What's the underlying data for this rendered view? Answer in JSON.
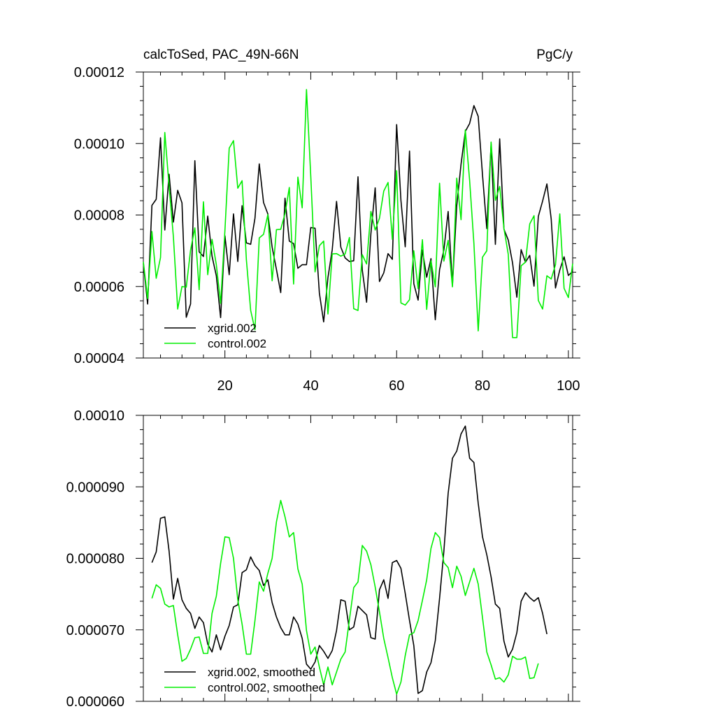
{
  "colors": {
    "xgrid": "#000000",
    "control": "#00ee00",
    "axis": "#000000"
  },
  "chart_data": [
    {
      "type": "line",
      "title": "calcToSed, PAC_49N-66N",
      "title_right": "PgC/y",
      "xlim": [
        1,
        101
      ],
      "ylim": [
        4e-05,
        0.00012
      ],
      "xticks": [
        20,
        40,
        60,
        80,
        100
      ],
      "xtick_labels": [
        "20",
        "40",
        "60",
        "80",
        "100"
      ],
      "yticks": [
        4e-05,
        6e-05,
        8e-05,
        0.0001,
        0.00012
      ],
      "ytick_labels": [
        "0.00004",
        "0.00006",
        "0.00008",
        "0.00010",
        "0.00012"
      ],
      "legend_position": "bottom-left",
      "series": [
        {
          "name": "xgrid.002",
          "color": "#000000",
          "x_start": 1,
          "values": [
            6.65e-05,
            5.51e-05,
            8.27e-05,
            8.44e-05,
            0.0001016,
            7.58e-05,
            9.14e-05,
            7.8e-05,
            8.69e-05,
            8.34e-05,
            5.14e-05,
            5.51e-05,
            9.52e-05,
            6.97e-05,
            6.84e-05,
            7.97e-05,
            6.85e-05,
            6.3e-05,
            5.13e-05,
            7.42e-05,
            6.33e-05,
            8.03e-05,
            6.7e-05,
            8.26e-05,
            7.22e-05,
            7.18e-05,
            7.91e-05,
            9.43e-05,
            8.35e-05,
            8.03e-05,
            7.1e-05,
            6.48e-05,
            5.83e-05,
            8.47e-05,
            7.27e-05,
            7.2e-05,
            6.51e-05,
            6.61e-05,
            6.61e-05,
            7.65e-05,
            7.63e-05,
            5.82e-05,
            5.01e-05,
            6.25e-05,
            7.03e-05,
            8.38e-05,
            7.1e-05,
            6.8e-05,
            6.7e-05,
            6.72e-05,
            9.07e-05,
            6.46e-05,
            5.56e-05,
            7.47e-05,
            8.76e-05,
            6.14e-05,
            6.38e-05,
            6.92e-05,
            6.76e-05,
            0.0001053,
            8.41e-05,
            7.11e-05,
            9.79e-05,
            6.08e-05,
            5.62e-05,
            7.02e-05,
            6.26e-05,
            6.78e-05,
            5.07e-05,
            6.47e-05,
            7.02e-05,
            8.1e-05,
            6.03e-05,
            8.26e-05,
            9.42e-05,
            0.0001034,
            0.0001056,
            0.0001106,
            0.0001076,
            9.12e-05,
            7.62e-05,
            9.98e-05,
            7.18e-05,
            0.0001013,
            7.6e-05,
            7.3e-05,
            6.66e-05,
            5.7e-05,
            7.03e-05,
            6.68e-05,
            6.87e-05,
            6.01e-05,
            7.96e-05,
            8.39e-05,
            8.87e-05,
            7.89e-05,
            5.96e-05,
            6.46e-05,
            6.83e-05,
            6.31e-05,
            6.42e-05
          ]
        },
        {
          "name": "control.002",
          "color": "#00ee00",
          "x_start": 1,
          "values": [
            6.69e-05,
            5.66e-05,
            7.54e-05,
            6.23e-05,
            6.81e-05,
            0.0001031,
            8.8e-05,
            7.39e-05,
            5.37e-05,
            6e-05,
            5.98e-05,
            7.02e-05,
            7.64e-05,
            5.91e-05,
            8.37e-05,
            6.33e-05,
            7.32e-05,
            6.61e-05,
            5.53e-05,
            7.56e-05,
            9.87e-05,
            0.0001008,
            8.75e-05,
            8.96e-05,
            6.75e-05,
            5.33e-05,
            4.79e-05,
            7.36e-05,
            7.46e-05,
            8.01e-05,
            6.16e-05,
            7.59e-05,
            7.6e-05,
            8.04e-05,
            8.77e-05,
            6.07e-05,
            9.06e-05,
            8.2e-05,
            0.0001151,
            9.08e-05,
            6.41e-05,
            7.14e-05,
            7.27e-05,
            5.23e-05,
            6.91e-05,
            6.92e-05,
            6.85e-05,
            6.91e-05,
            7.37e-05,
            5.38e-05,
            5.33e-05,
            6.89e-05,
            6.63e-05,
            8.1e-05,
            7.58e-05,
            7.91e-05,
            8.67e-05,
            8.91e-05,
            7.32e-05,
            9.24e-05,
            5.54e-05,
            5.48e-05,
            5.63e-05,
            7e-05,
            5.94e-05,
            7.31e-05,
            5.36e-05,
            6.72e-05,
            5.99e-05,
            8.89e-05,
            6.71e-05,
            7.29e-05,
            5.99e-05,
            9.03e-05,
            7.87e-05,
            0.0001038,
            8.97e-05,
            7.2e-05,
            4.76e-05,
            6.82e-05,
            7e-05,
            0.0001004,
            8.41e-05,
            8.8e-05,
            7.62e-05,
            6.9e-05,
            4.57e-05,
            4.57e-05,
            6.58e-05,
            6.68e-05,
            7.75e-05,
            7.98e-05,
            5.61e-05,
            5.37e-05,
            6.3e-05,
            6.21e-05,
            6.61e-05,
            8.03e-05,
            5.95e-05,
            5.69e-05,
            6.64e-05
          ]
        }
      ]
    },
    {
      "type": "line",
      "xlim": [
        1,
        101
      ],
      "ylim": [
        6e-05,
        0.0001
      ],
      "xticks": [
        20,
        40,
        60,
        80,
        100
      ],
      "yticks": [
        6e-05,
        7e-05,
        8e-05,
        9e-05,
        0.0001
      ],
      "ytick_labels": [
        "0.000060",
        "0.000070",
        "0.000080",
        "0.000090",
        "0.00010"
      ],
      "legend_position": "bottom-left",
      "series": [
        {
          "name": "xgrid.002, smoothed",
          "color": "#000000",
          "x_start": 3,
          "values": [
            7.94e-05,
            8.09e-05,
            8.56e-05,
            8.58e-05,
            8.1e-05,
            7.43e-05,
            7.72e-05,
            7.42e-05,
            7.3e-05,
            7.23e-05,
            7.02e-05,
            7.18e-05,
            7.1e-05,
            6.8e-05,
            6.69e-05,
            6.93e-05,
            6.72e-05,
            6.91e-05,
            7.06e-05,
            7.32e-05,
            7.35e-05,
            7.8e-05,
            7.84e-05,
            8.02e-05,
            7.9e-05,
            7.83e-05,
            7.62e-05,
            7.7e-05,
            7.38e-05,
            7.18e-05,
            7.03e-05,
            6.93e-05,
            6.93e-05,
            7.18e-05,
            7.08e-05,
            6.88e-05,
            6.52e-05,
            6.45e-05,
            6.55e-05,
            6.78e-05,
            6.7e-05,
            6.6e-05,
            6.71e-05,
            6.99e-05,
            7.42e-05,
            7.4e-05,
            7e-05,
            7.04e-05,
            7.33e-05,
            7.27e-05,
            7.21e-05,
            6.89e-05,
            6.87e-05,
            7.56e-05,
            7.7e-05,
            7.44e-05,
            7.94e-05,
            7.97e-05,
            7.86e-05,
            7.51e-05,
            7.13e-05,
            6.78e-05,
            6.11e-05,
            6.15e-05,
            6.41e-05,
            6.54e-05,
            6.85e-05,
            7.44e-05,
            8.1e-05,
            8.91e-05,
            9.4e-05,
            9.5e-05,
            9.74e-05,
            9.85e-05,
            9.4e-05,
            9.34e-05,
            8.77e-05,
            8.3e-05,
            8.05e-05,
            7.74e-05,
            7.36e-05,
            7.3e-05,
            6.84e-05,
            6.62e-05,
            6.73e-05,
            6.96e-05,
            7.4e-05,
            7.52e-05,
            7.45e-05,
            7.4e-05,
            7.45e-05,
            7.23e-05,
            6.94e-05
          ]
        },
        {
          "name": "control.002, smoothed",
          "color": "#00ee00",
          "x_start": 3,
          "values": [
            7.44e-05,
            7.63e-05,
            7.58e-05,
            7.36e-05,
            7.32e-05,
            7.34e-05,
            6.93e-05,
            6.56e-05,
            6.6e-05,
            6.73e-05,
            6.89e-05,
            6.9e-05,
            6.67e-05,
            6.67e-05,
            7.23e-05,
            7.47e-05,
            7.93e-05,
            8.3e-05,
            8.29e-05,
            8e-05,
            7.42e-05,
            7.08e-05,
            6.66e-05,
            6.66e-05,
            7.13e-05,
            7.67e-05,
            7.54e-05,
            7.79e-05,
            8e-05,
            8.51e-05,
            8.81e-05,
            8.58e-05,
            8.3e-05,
            8.36e-05,
            7.85e-05,
            7.64e-05,
            6.99e-05,
            6.66e-05,
            6.76e-05,
            6.48e-05,
            6.23e-05,
            6.48e-05,
            6.23e-05,
            6.41e-05,
            6.59e-05,
            6.69e-05,
            7.14e-05,
            7.59e-05,
            7.67e-05,
            8.18e-05,
            8.1e-05,
            7.91e-05,
            7.6e-05,
            7.25e-05,
            6.88e-05,
            6.61e-05,
            6.33e-05,
            6.1e-05,
            6.27e-05,
            6.64e-05,
            6.93e-05,
            6.96e-05,
            7.13e-05,
            7.41e-05,
            7.7e-05,
            8.14e-05,
            8.36e-05,
            8.29e-05,
            7.94e-05,
            7.87e-05,
            7.59e-05,
            7.89e-05,
            7.75e-05,
            7.48e-05,
            7.67e-05,
            7.86e-05,
            7.64e-05,
            7.17e-05,
            6.69e-05,
            6.51e-05,
            6.31e-05,
            6.33e-05,
            6.27e-05,
            6.37e-05,
            6.63e-05,
            6.59e-05,
            6.59e-05,
            6.62e-05,
            6.32e-05,
            6.33e-05,
            6.53e-05
          ]
        }
      ]
    }
  ]
}
